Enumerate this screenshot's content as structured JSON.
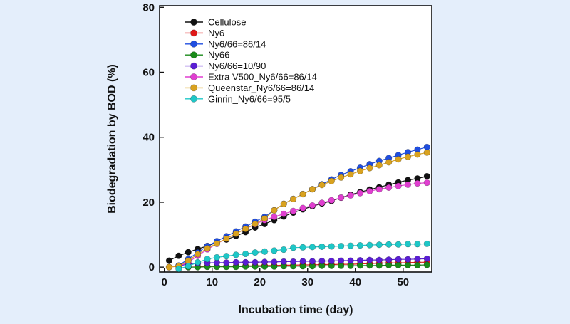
{
  "chart_data": {
    "type": "scatter",
    "title": "",
    "xlabel": "Incubation time (day)",
    "ylabel": "Biodegradation by BOD (%)",
    "xlim": [
      -1,
      56
    ],
    "ylim": [
      -1.5,
      80.5
    ],
    "xticks": [
      0,
      10,
      20,
      30,
      40,
      50
    ],
    "yticks": [
      0,
      20,
      40,
      60,
      80
    ],
    "grid": false,
    "legend_position": "top-left",
    "line_style": "line with circle markers",
    "series": [
      {
        "name": "Cellulose",
        "color": "#111111",
        "x": [
          1,
          3,
          5,
          7,
          9,
          11,
          13,
          15,
          17,
          19,
          21,
          23,
          25,
          27,
          29,
          31,
          33,
          35,
          37,
          39,
          41,
          43,
          45,
          47,
          49,
          51,
          53,
          55
        ],
        "y": [
          2,
          3.5,
          4.6,
          5.6,
          6.5,
          7.6,
          8.5,
          9.6,
          10.8,
          12.2,
          13.3,
          14.5,
          15.6,
          16.8,
          17.8,
          18.8,
          19.6,
          20.4,
          21.4,
          22.3,
          23.1,
          23.9,
          24.6,
          25.4,
          26.1,
          26.8,
          27.3,
          28
        ]
      },
      {
        "name": "Ny6",
        "color": "#e01919",
        "x": [
          5,
          7,
          9,
          11,
          13,
          15,
          17,
          19,
          21,
          23,
          25,
          27,
          29,
          31,
          33,
          35,
          37,
          39,
          41,
          43,
          45,
          47,
          49,
          51,
          53,
          55
        ],
        "y": [
          0,
          0.1,
          0.2,
          0.2,
          0.3,
          0.3,
          0.4,
          0.4,
          0.5,
          0.5,
          0.6,
          0.6,
          0.7,
          0.7,
          0.8,
          0.8,
          0.9,
          0.9,
          1,
          1.1,
          1.2,
          1.3,
          1.3,
          1.4,
          1.5,
          1.5
        ]
      },
      {
        "name": "Ny6/66=86/14",
        "color": "#1f4ee0",
        "x": [
          3,
          5,
          7,
          9,
          11,
          13,
          15,
          17,
          19,
          21,
          23,
          25,
          27,
          29,
          31,
          33,
          35,
          37,
          39,
          41,
          43,
          45,
          47,
          49,
          51,
          53,
          55
        ],
        "y": [
          0.5,
          2.5,
          4.5,
          6.5,
          8,
          9.5,
          11,
          12.5,
          14,
          15.5,
          17.5,
          19.5,
          21,
          22.5,
          24,
          25.5,
          27,
          28.4,
          29.5,
          30.6,
          31.7,
          32.7,
          33.6,
          34.5,
          35.4,
          36.2,
          37
        ]
      },
      {
        "name": "Ny66",
        "color": "#1a8a1a",
        "x": [
          5,
          7,
          9,
          11,
          13,
          15,
          17,
          19,
          21,
          23,
          25,
          27,
          29,
          31,
          33,
          35,
          37,
          39,
          41,
          43,
          45,
          47,
          49,
          51,
          53,
          55
        ],
        "y": [
          0,
          0,
          0.1,
          0.1,
          0.1,
          0.1,
          0.2,
          0.2,
          0.2,
          0.2,
          0.3,
          0.3,
          0.3,
          0.3,
          0.4,
          0.4,
          0.4,
          0.4,
          0.5,
          0.5,
          0.5,
          0.6,
          0.6,
          0.6,
          0.6,
          0.7
        ]
      },
      {
        "name": "Ny6/66=10/90",
        "color": "#5a1ed4",
        "x": [
          3,
          5,
          7,
          9,
          11,
          13,
          15,
          17,
          19,
          21,
          23,
          25,
          27,
          29,
          31,
          33,
          35,
          37,
          39,
          41,
          43,
          45,
          47,
          49,
          51,
          53,
          55
        ],
        "y": [
          0.3,
          1,
          1.2,
          1.3,
          1.4,
          1.4,
          1.5,
          1.5,
          1.5,
          1.6,
          1.6,
          1.7,
          1.7,
          1.8,
          1.8,
          1.9,
          1.9,
          2,
          2,
          2.1,
          2.2,
          2.2,
          2.3,
          2.4,
          2.4,
          2.5,
          2.6
        ]
      },
      {
        "name": "Extra V500_Ny6/66=86/14",
        "color": "#e03fd0",
        "x": [
          1,
          3,
          5,
          7,
          9,
          11,
          13,
          15,
          17,
          19,
          21,
          23,
          25,
          27,
          29,
          31,
          33,
          35,
          37,
          39,
          41,
          43,
          45,
          47,
          49,
          51,
          53,
          55
        ],
        "y": [
          0,
          0.3,
          1.5,
          3.5,
          5.5,
          7.2,
          8.8,
          10.3,
          11.8,
          13.2,
          14.5,
          15.5,
          16.4,
          17.3,
          18.2,
          19,
          19.8,
          20.6,
          21.4,
          22.1,
          22.8,
          23.4,
          24,
          24.5,
          25,
          25.4,
          25.8,
          26
        ]
      },
      {
        "name": "Queenstar_Ny6/66=86/14",
        "color": "#d9a21f",
        "x": [
          1,
          3,
          5,
          7,
          9,
          11,
          13,
          15,
          17,
          19,
          21,
          23,
          25,
          27,
          29,
          31,
          33,
          35,
          37,
          39,
          41,
          43,
          45,
          47,
          49,
          51,
          53,
          55
        ],
        "y": [
          0,
          0.3,
          2,
          4,
          5.8,
          7.3,
          8.8,
          10.3,
          11.8,
          13.3,
          15,
          17.5,
          19.5,
          21,
          22.5,
          24,
          25.3,
          26.5,
          27.6,
          28.6,
          29.6,
          30.5,
          31.4,
          32.3,
          33.2,
          34,
          34.7,
          35.3
        ]
      },
      {
        "name": "Ginrin_Ny6/66=95/5",
        "color": "#1ec7c7",
        "x": [
          3,
          5,
          7,
          9,
          11,
          13,
          15,
          17,
          19,
          21,
          23,
          25,
          27,
          29,
          31,
          33,
          35,
          37,
          39,
          41,
          43,
          45,
          47,
          49,
          51,
          53,
          55
        ],
        "y": [
          -0.5,
          0.3,
          1.5,
          2.5,
          3,
          3.4,
          3.8,
          4.1,
          4.5,
          4.8,
          5.1,
          5.4,
          6,
          6.1,
          6.2,
          6.3,
          6.4,
          6.5,
          6.6,
          6.7,
          6.8,
          6.9,
          7,
          7,
          7.1,
          7.1,
          7.2
        ]
      }
    ]
  }
}
